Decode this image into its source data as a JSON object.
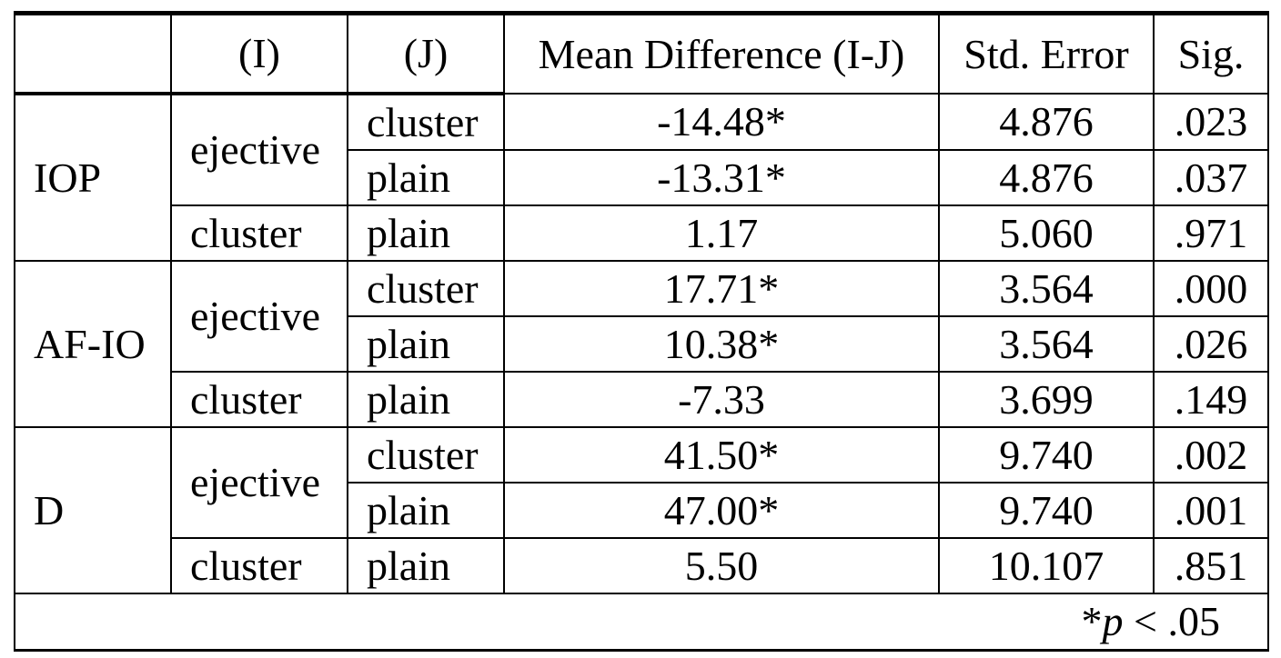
{
  "table": {
    "header": [
      "(I)",
      "(J)",
      "Mean Difference (I-J)",
      "Std. Error",
      "Sig."
    ],
    "groups": [
      {
        "measure": "IOP",
        "rows": [
          {
            "i": "ejective",
            "j": "cluster",
            "mean_diff": "-14.48*",
            "std_error": "4.876",
            "sig": ".023"
          },
          {
            "j": "plain",
            "mean_diff": "-13.31*",
            "std_error": "4.876",
            "sig": ".037"
          },
          {
            "i": "cluster",
            "j": "plain",
            "mean_diff": "1.17",
            "std_error": "5.060",
            "sig": ".971"
          }
        ]
      },
      {
        "measure": "AF-IO",
        "rows": [
          {
            "i": "ejective",
            "j": "cluster",
            "mean_diff": "17.71*",
            "std_error": "3.564",
            "sig": ".000"
          },
          {
            "j": "plain",
            "mean_diff": "10.38*",
            "std_error": "3.564",
            "sig": ".026"
          },
          {
            "i": "cluster",
            "j": "plain",
            "mean_diff": "-7.33",
            "std_error": "3.699",
            "sig": ".149"
          }
        ]
      },
      {
        "measure": "D",
        "rows": [
          {
            "i": "ejective",
            "j": "cluster",
            "mean_diff": "41.50*",
            "std_error": "9.740",
            "sig": ".002"
          },
          {
            "j": "plain",
            "mean_diff": "47.00*",
            "std_error": "9.740",
            "sig": ".001"
          },
          {
            "i": "cluster",
            "j": "plain",
            "mean_diff": "5.50",
            "std_error": "10.107",
            "sig": ".851"
          }
        ]
      }
    ],
    "footnote": {
      "mark": "*",
      "symbol": "p",
      "text": "< .05"
    }
  }
}
